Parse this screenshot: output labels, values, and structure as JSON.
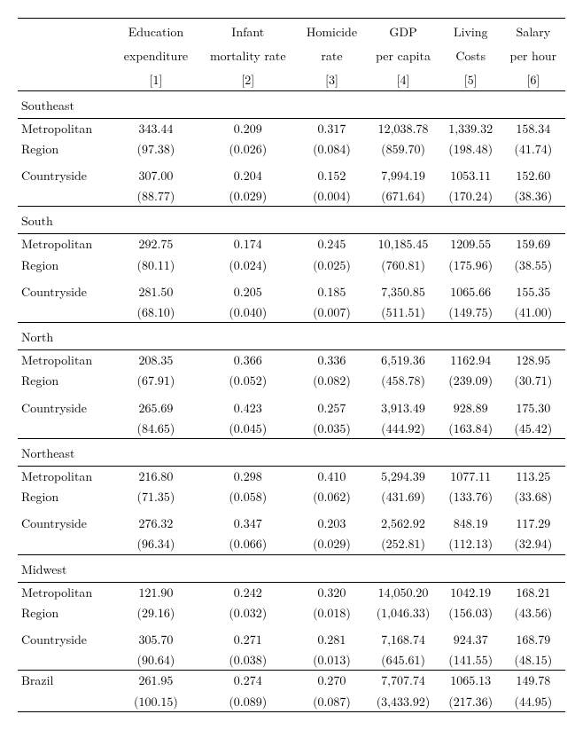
{
  "columns": [
    {
      "line1": "Education",
      "line2": "expenditure",
      "line3": "[1]"
    },
    {
      "line1": "Infant",
      "line2": "mortality rate",
      "line3": "[2]"
    },
    {
      "line1": "Homicide",
      "line2": "rate",
      "line3": "[3]"
    },
    {
      "line1": "GDP",
      "line2": "per capita",
      "line3": "[4]"
    },
    {
      "line1": "Living",
      "line2": "Costs",
      "line3": "[5]"
    },
    {
      "line1": "Salary",
      "line2": "per hour",
      "line3": "[6]"
    }
  ],
  "sections": [
    {
      "name": "Southeast",
      "rows": [
        {
          "label1": "Metropolitan",
          "label2": "Region",
          "vals": [
            "343.44",
            "0.209",
            "0.317",
            "12,038.78",
            "1,339.32",
            "158.34"
          ],
          "se": [
            "(97.38)",
            "(0.026)",
            "(0.084)",
            "(859.70)",
            "(198.48)",
            "(41.74)"
          ]
        },
        {
          "label1": "Countryside",
          "label2": "",
          "vals": [
            "307.00",
            "0.204",
            "0.152",
            "7,994.19",
            "1053.11",
            "152.60"
          ],
          "se": [
            "(88.77)",
            "(0.029)",
            "(0.004)",
            "(671.64)",
            "(170.24)",
            "(38.36)"
          ]
        }
      ]
    },
    {
      "name": "South",
      "rows": [
        {
          "label1": "Metropolitan",
          "label2": "Region",
          "vals": [
            "292.75",
            "0.174",
            "0.245",
            "10,185.45",
            "1209.55",
            "159.69"
          ],
          "se": [
            "(80.11)",
            "(0.024)",
            "(0.025)",
            "(760.81)",
            "(175.96)",
            "(38.55)"
          ]
        },
        {
          "label1": "Countryside",
          "label2": "",
          "vals": [
            "281.50",
            "0.205",
            "0.185",
            "7,350.85",
            "1065.66",
            "155.35"
          ],
          "se": [
            "(68.10)",
            "(0.040)",
            "(0.007)",
            "(511.51)",
            "(149.75)",
            "(41.00)"
          ]
        }
      ]
    },
    {
      "name": "North",
      "rows": [
        {
          "label1": "Metropolitan",
          "label2": "Region",
          "vals": [
            "208.35",
            "0.366",
            "0.336",
            "6,519.36",
            "1162.94",
            "128.95"
          ],
          "se": [
            "(67.91)",
            "(0.052)",
            "(0.082)",
            "(458.78)",
            "(239.09)",
            "(30.71)"
          ]
        },
        {
          "label1": "Countryside",
          "label2": "",
          "vals": [
            "265.69",
            "0.423",
            "0.257",
            "3,913.49",
            "928.89",
            "175.30"
          ],
          "se": [
            "(84.65)",
            "(0.045)",
            "(0.035)",
            "(444.92)",
            "(163.84)",
            "(45.42)"
          ]
        }
      ]
    },
    {
      "name": "Northeast",
      "rows": [
        {
          "label1": "Metropolitan",
          "label2": "Region",
          "vals": [
            "216.80",
            "0.298",
            "0.410",
            "5,294.39",
            "1077.11",
            "113.25"
          ],
          "se": [
            "(71.35)",
            "(0.058)",
            "(0.062)",
            "(431.69)",
            "(133.76)",
            "(33.68)"
          ]
        },
        {
          "label1": "Countryside",
          "label2": "",
          "vals": [
            "276.32",
            "0.347",
            "0.203",
            "2,562.92",
            "848.19",
            "117.29"
          ],
          "se": [
            "(96.34)",
            "(0.066)",
            "(0.029)",
            "(252.81)",
            "(112.13)",
            "(32.94)"
          ]
        }
      ]
    },
    {
      "name": "Midwest",
      "rows": [
        {
          "label1": "Metropolitan",
          "label2": "Region",
          "vals": [
            "121.90",
            "0.242",
            "0.320",
            "14,050.20",
            "1042.19",
            "168.21"
          ],
          "se": [
            "(29.16)",
            "(0.032)",
            "(0.018)",
            "(1,046.33)",
            "(156.03)",
            "(43.56)"
          ]
        },
        {
          "label1": "Countryside",
          "label2": "",
          "vals": [
            "305.70",
            "0.271",
            "0.281",
            "7,168.74",
            "924.37",
            "168.79"
          ],
          "se": [
            "(90.64)",
            "(0.038)",
            "(0.013)",
            "(645.61)",
            "(141.55)",
            "(48.15)"
          ]
        }
      ]
    }
  ],
  "total": {
    "label": "Brazil",
    "vals": [
      "261.95",
      "0.274",
      "0.270",
      "7,707.74",
      "1065.13",
      "149.78"
    ],
    "se": [
      "(100.15)",
      "(0.089)",
      "(0.087)",
      "(3,433.92)",
      "(217.36)",
      "(44.95)"
    ]
  }
}
